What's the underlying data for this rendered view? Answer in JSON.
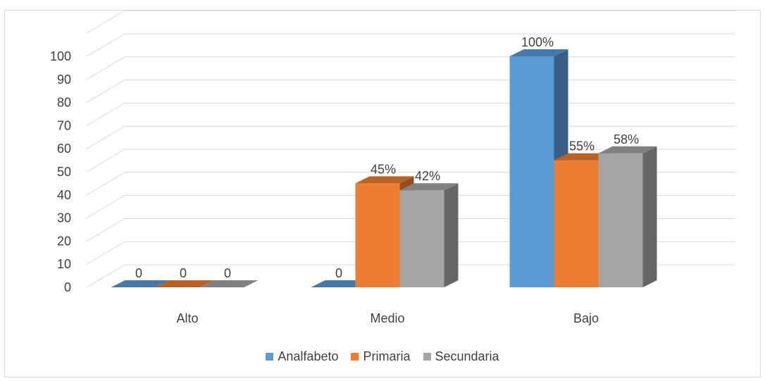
{
  "chart_data": {
    "type": "bar",
    "categories": [
      "Alto",
      "Medio",
      "Bajo"
    ],
    "series": [
      {
        "name": "Analfabeto",
        "values": [
          0,
          0,
          100
        ],
        "labels": [
          "0",
          "0",
          "100%"
        ]
      },
      {
        "name": "Primaria",
        "values": [
          0,
          45,
          55
        ],
        "labels": [
          "0",
          "45%",
          "55%"
        ]
      },
      {
        "name": "Secundaria",
        "values": [
          0,
          42,
          58
        ],
        "labels": [
          "0",
          "42%",
          "58%"
        ]
      }
    ],
    "ylim": [
      0,
      100
    ],
    "yticks": [
      "0",
      "10",
      "20",
      "30",
      "40",
      "50",
      "60",
      "70",
      "80",
      "90",
      "100"
    ],
    "grid": true,
    "legend_position": "bottom",
    "style": "3d-clustered-column"
  },
  "colors": {
    "Analfabeto": "#5b9bd5",
    "Primaria": "#ed7d31",
    "Secundaria": "#a5a5a5",
    "grid": "#d9d9d9",
    "text": "#404040"
  }
}
